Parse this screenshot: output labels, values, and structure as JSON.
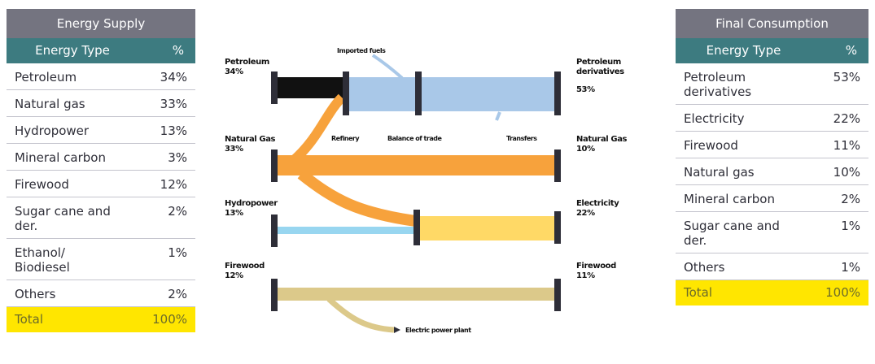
{
  "supply": {
    "title": "Energy Supply",
    "col_type": "Energy Type",
    "col_pct": "%",
    "rows": [
      {
        "type": "Petroleum",
        "pct": "34%"
      },
      {
        "type": "Natural gas",
        "pct": "33%"
      },
      {
        "type": "Hydropower",
        "pct": "13%"
      },
      {
        "type": "Mineral carbon",
        "pct": "3%"
      },
      {
        "type": "Firewood",
        "pct": "12%"
      },
      {
        "type": "Sugar cane and der.",
        "pct": "2%"
      },
      {
        "type": "Ethanol/ Biodiesel",
        "pct": "1%"
      },
      {
        "type": "Others",
        "pct": "2%"
      }
    ],
    "total_label": "Total",
    "total_pct": "100%"
  },
  "consumption": {
    "title": "Final Consumption",
    "col_type": "Energy Type",
    "col_pct": "%",
    "rows": [
      {
        "type": "Petroleum derivatives",
        "pct": "53%"
      },
      {
        "type": "Electricity",
        "pct": "22%"
      },
      {
        "type": "Firewood",
        "pct": "11%"
      },
      {
        "type": "Natural gas",
        "pct": "10%"
      },
      {
        "type": "Mineral carbon",
        "pct": "2%"
      },
      {
        "type": "Sugar cane and der.",
        "pct": "1%"
      },
      {
        "type": "Others",
        "pct": "1%"
      }
    ],
    "total_label": "Total",
    "total_pct": "100%"
  },
  "diagram": {
    "left": {
      "petroleum": {
        "name": "Petroleum",
        "pct": "34%"
      },
      "natural_gas": {
        "name": "Natural Gas",
        "pct": "33%"
      },
      "hydropower": {
        "name": "Hydropower",
        "pct": "13%"
      },
      "firewood": {
        "name": "Firewood",
        "pct": "12%"
      }
    },
    "right": {
      "petroleum_derivatives": {
        "name": "Petroleum derivatives",
        "pct": "53%"
      },
      "natural_gas": {
        "name": "Natural Gas",
        "pct": "10%"
      },
      "electricity": {
        "name": "Electricity",
        "pct": "22%"
      },
      "firewood": {
        "name": "Firewood",
        "pct": "11%"
      }
    },
    "nodes": {
      "refinery": "Refinery",
      "balance_of_trade": "Balance of trade",
      "transfers": "Transfers",
      "inflows": "Imported fuels",
      "power_plant": "Electric power plant"
    },
    "colors": {
      "petroleum": "#111111",
      "derivatives": "#a9c8e8",
      "gas": "#f7a23c",
      "hydro": "#98d6f0",
      "electricity": "#ffd966",
      "firewood": "#dcc98a",
      "node": "#2e2e38"
    }
  }
}
